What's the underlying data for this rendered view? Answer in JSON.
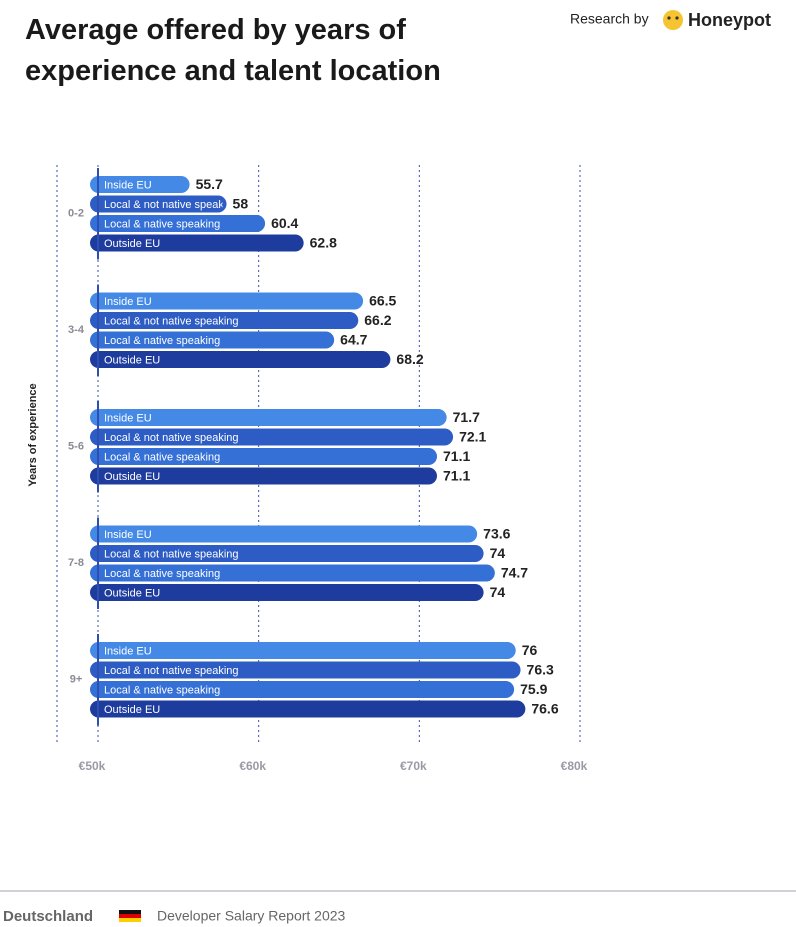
{
  "header": {
    "research_by": "Research by",
    "brand": "Honeypot"
  },
  "chart_data": {
    "type": "bar",
    "orientation": "horizontal",
    "title": "Average offered by years of experience and talent location",
    "y_label": "Years of experience",
    "categories": [
      "0-2",
      "3-4",
      "5-6",
      "7-8",
      "9+"
    ],
    "series": [
      {
        "name": "Inside EU",
        "color": "#4589e6",
        "values": [
          55.7,
          66.5,
          71.7,
          73.6,
          76
        ]
      },
      {
        "name": "Local & not native speaking",
        "color": "#2d5cc4",
        "values": [
          58,
          66.2,
          72.1,
          74,
          76.3
        ]
      },
      {
        "name": "Local & native speaking",
        "color": "#3470d6",
        "values": [
          60.4,
          64.7,
          71.1,
          74.7,
          75.9
        ]
      },
      {
        "name": "Outside EU",
        "color": "#1e3c9e",
        "values": [
          62.8,
          68.2,
          71.1,
          74,
          76.6
        ]
      }
    ],
    "xlim": [
      50,
      80
    ],
    "xticks": [
      {
        "value": 50,
        "label": "€50k"
      },
      {
        "value": 60,
        "label": "€60k"
      },
      {
        "value": 70,
        "label": "€70k"
      },
      {
        "value": 80,
        "label": "€80k"
      }
    ],
    "grid": true
  },
  "footer": {
    "country": "Deutschland",
    "report": "Developer Salary Report 2023"
  }
}
